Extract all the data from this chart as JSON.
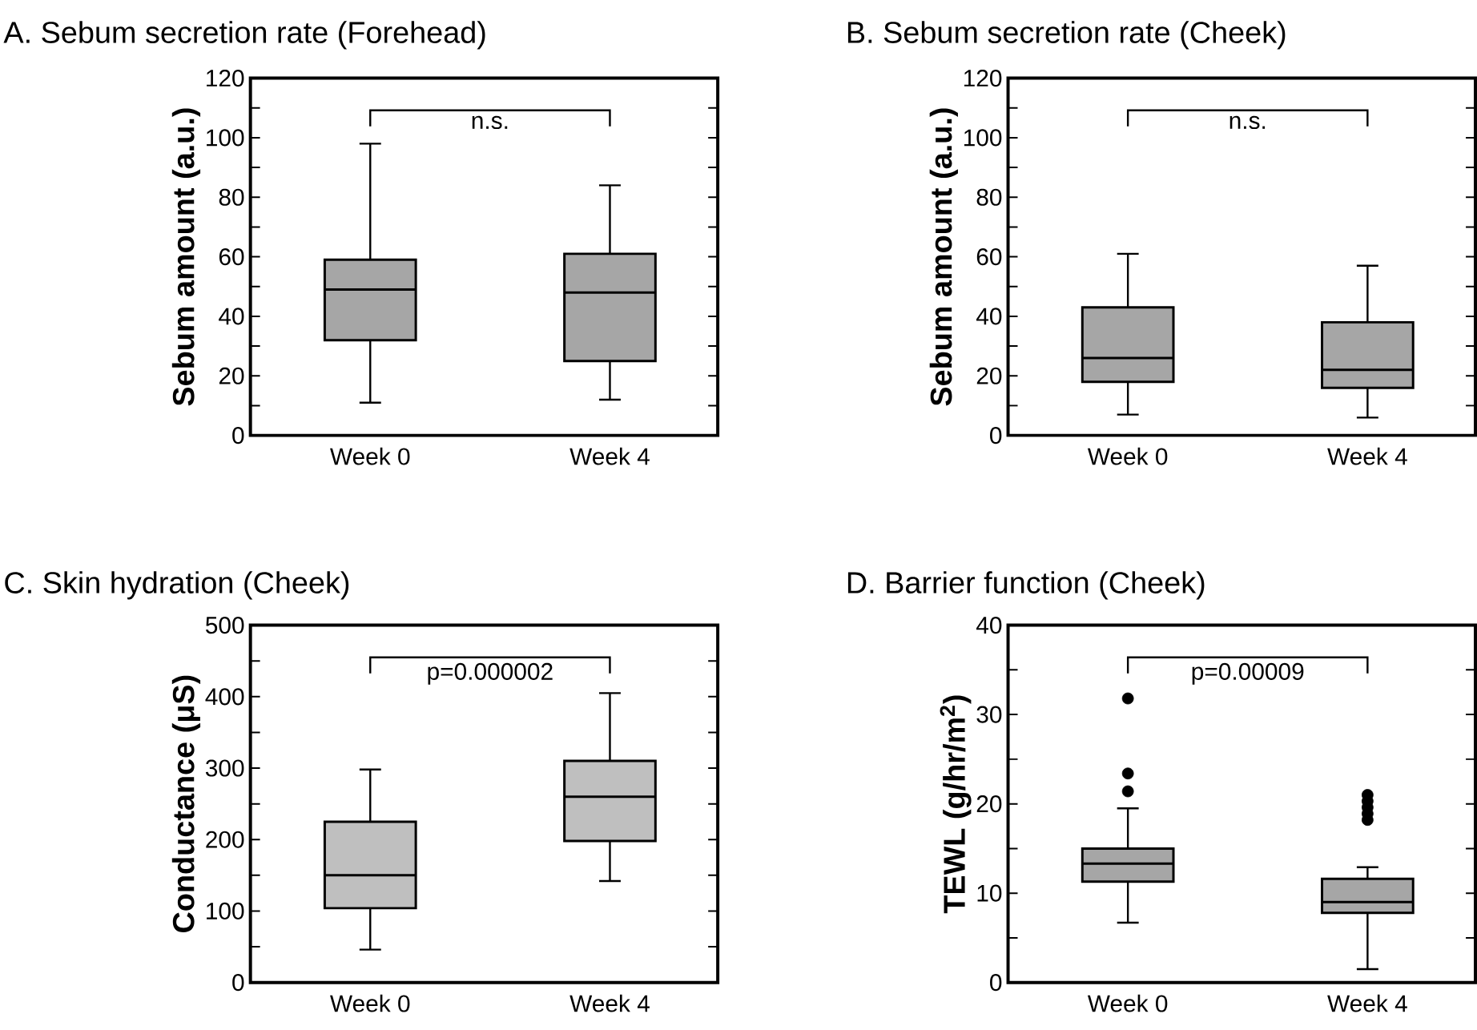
{
  "chart_data": [
    {
      "type": "box",
      "title": "A. Sebum secretion rate (Forehead)",
      "ylabel": "Sebum amount  (a.u.)",
      "categories": [
        "Week 0",
        "Week 4"
      ],
      "color": "#a6a6a6",
      "ylim": [
        0,
        120
      ],
      "yticks": [
        0,
        20,
        40,
        60,
        80,
        100,
        120
      ],
      "annotations": [
        "n.s."
      ],
      "boxes": [
        {
          "low": 11,
          "q1": 32,
          "median": 49,
          "q3": 59,
          "high": 98
        },
        {
          "low": 12,
          "q1": 25,
          "median": 48,
          "q3": 61,
          "high": 84
        }
      ]
    },
    {
      "type": "box",
      "title": "B. Sebum secretion rate (Cheek)",
      "ylabel": "Sebum amount  (a.u.)",
      "categories": [
        "Week 0",
        "Week 4"
      ],
      "color": "#a6a6a6",
      "ylim": [
        0,
        120
      ],
      "yticks": [
        0,
        20,
        40,
        60,
        80,
        100,
        120
      ],
      "annotations": [
        "n.s."
      ],
      "boxes": [
        {
          "low": 7,
          "q1": 18,
          "median": 26,
          "q3": 43,
          "high": 61
        },
        {
          "low": 6,
          "q1": 16,
          "median": 22,
          "q3": 38,
          "high": 57
        }
      ]
    },
    {
      "type": "box",
      "title": "C. Skin hydration (Cheek)",
      "ylabel": "Conductance (μS)",
      "categories": [
        "Week 0",
        "Week 4"
      ],
      "color": "#bfbfbf",
      "ylim": [
        0,
        500
      ],
      "yticks": [
        0,
        100,
        200,
        300,
        400,
        500
      ],
      "annotations": [
        "p=0.000002"
      ],
      "boxes": [
        {
          "low": 46,
          "q1": 104,
          "median": 150,
          "q3": 225,
          "high": 298
        },
        {
          "low": 142,
          "q1": 198,
          "median": 260,
          "q3": 310,
          "high": 405
        }
      ]
    },
    {
      "type": "box",
      "title": "D. Barrier function (Cheek)",
      "ylabel": "TEWL (g/hr/m$^{2}$)",
      "categories": [
        "Week 0",
        "Week 4"
      ],
      "color": "#a6a6a6",
      "ylim": [
        0,
        40
      ],
      "yticks": [
        0,
        10,
        20,
        30,
        40
      ],
      "annotations": [
        "p=0.00009"
      ],
      "boxes": [
        {
          "low": 6.7,
          "q1": 11.3,
          "median": 13.3,
          "q3": 15,
          "high": 19.5,
          "outliers": [
            31.8,
            23.4,
            21.4
          ]
        },
        {
          "low": 1.5,
          "q1": 7.8,
          "median": 9,
          "q3": 11.6,
          "high": 12.9,
          "outliers": [
            21,
            20.3,
            19.6,
            18.9,
            18.2
          ]
        }
      ]
    }
  ]
}
